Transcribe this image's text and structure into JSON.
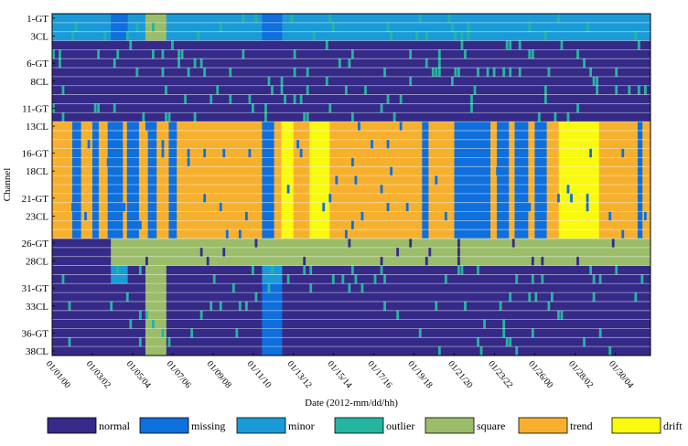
{
  "chart_data": {
    "type": "heatmap",
    "title": "",
    "xlabel": "Date (2012-mm/dd/hh)",
    "ylabel": "Channel",
    "y_tick_labels": [
      "1-GT",
      "3CL",
      "6-GT",
      "8CL",
      "11-GT",
      "13CL",
      "16-GT",
      "18CL",
      "21-GT",
      "23CL",
      "26-GT",
      "28CL",
      "31-GT",
      "33CL",
      "36-GT",
      "38CL"
    ],
    "y_tick_channels": [
      1,
      3,
      6,
      8,
      11,
      13,
      16,
      18,
      21,
      23,
      26,
      28,
      31,
      33,
      36,
      38
    ],
    "channel_range": [
      1,
      38
    ],
    "x_tick_labels": [
      "01/01/00",
      "01/03/02",
      "01/05/04",
      "01/07/06",
      "01/09/08",
      "01/11/10",
      "01/13/12",
      "01/15/14",
      "01/17/16",
      "01/19/18",
      "01/21/20",
      "01/23/22",
      "01/26/00",
      "01/28/02",
      "01/30/04"
    ],
    "x_tick_hours": [
      0,
      50,
      100,
      150,
      200,
      250,
      300,
      350,
      400,
      450,
      500,
      550,
      600,
      650,
      700
    ],
    "time_range_hours": [
      0,
      744
    ],
    "categories": [
      "normal",
      "missing",
      "minor",
      "outlier",
      "square",
      "trend",
      "drift"
    ],
    "colors": {
      "normal": "#352a87",
      "missing": "#0f6fdd",
      "minor": "#1a9bd7",
      "outlier": "#24b5a0",
      "square": "#9bbd6a",
      "trend": "#f7b02e",
      "drift": "#f9fa0f"
    },
    "bands": [
      {
        "channels": [
          1,
          3
        ],
        "base": "minor",
        "segments": [
          {
            "cat": "missing",
            "from": 73,
            "to": 94
          },
          {
            "cat": "square",
            "from": 116,
            "to": 142
          },
          {
            "cat": "missing",
            "from": 261,
            "to": 286
          }
        ],
        "noise": "outlier",
        "noise_level": 0.05
      },
      {
        "channels": [
          4,
          12
        ],
        "base": "normal",
        "segments": [],
        "noise": "outlier",
        "noise_level": 0.06
      },
      {
        "channels": [
          13,
          25
        ],
        "base": "trend",
        "segments": [
          {
            "cat": "missing",
            "from": 25,
            "to": 36
          },
          {
            "cat": "missing",
            "from": 50,
            "to": 58
          },
          {
            "cat": "missing",
            "from": 69,
            "to": 88
          },
          {
            "cat": "missing",
            "from": 93,
            "to": 108
          },
          {
            "cat": "missing",
            "from": 119,
            "to": 130
          },
          {
            "cat": "missing",
            "from": 145,
            "to": 155
          },
          {
            "cat": "missing",
            "from": 261,
            "to": 276
          },
          {
            "cat": "drift",
            "from": 285,
            "to": 300
          },
          {
            "cat": "drift",
            "from": 320,
            "to": 345
          },
          {
            "cat": "missing",
            "from": 460,
            "to": 468
          },
          {
            "cat": "missing",
            "from": 500,
            "to": 545
          },
          {
            "cat": "missing",
            "from": 553,
            "to": 568
          },
          {
            "cat": "missing",
            "from": 575,
            "to": 592
          },
          {
            "cat": "missing",
            "from": 600,
            "to": 615
          },
          {
            "cat": "drift",
            "from": 630,
            "to": 680
          },
          {
            "cat": "missing",
            "from": 728,
            "to": 734
          }
        ],
        "noise": "missing",
        "noise_level": 0.03
      },
      {
        "channels": [
          26,
          28
        ],
        "base": "square",
        "segments": [
          {
            "cat": "normal",
            "from": 0,
            "to": 73
          }
        ],
        "noise": "normal",
        "noise_level": 0.03
      },
      {
        "channels": [
          29,
          30
        ],
        "base": "normal",
        "segments": [
          {
            "cat": "minor",
            "from": 73,
            "to": 94
          },
          {
            "cat": "square",
            "from": 116,
            "to": 142
          },
          {
            "cat": "minor",
            "from": 261,
            "to": 286
          }
        ],
        "noise": "outlier",
        "noise_level": 0.06
      },
      {
        "channels": [
          31,
          38
        ],
        "base": "normal",
        "segments": [
          {
            "cat": "square",
            "from": 116,
            "to": 142
          },
          {
            "cat": "missing",
            "from": 261,
            "to": 286
          }
        ],
        "noise": "outlier",
        "noise_level": 0.03
      }
    ]
  }
}
